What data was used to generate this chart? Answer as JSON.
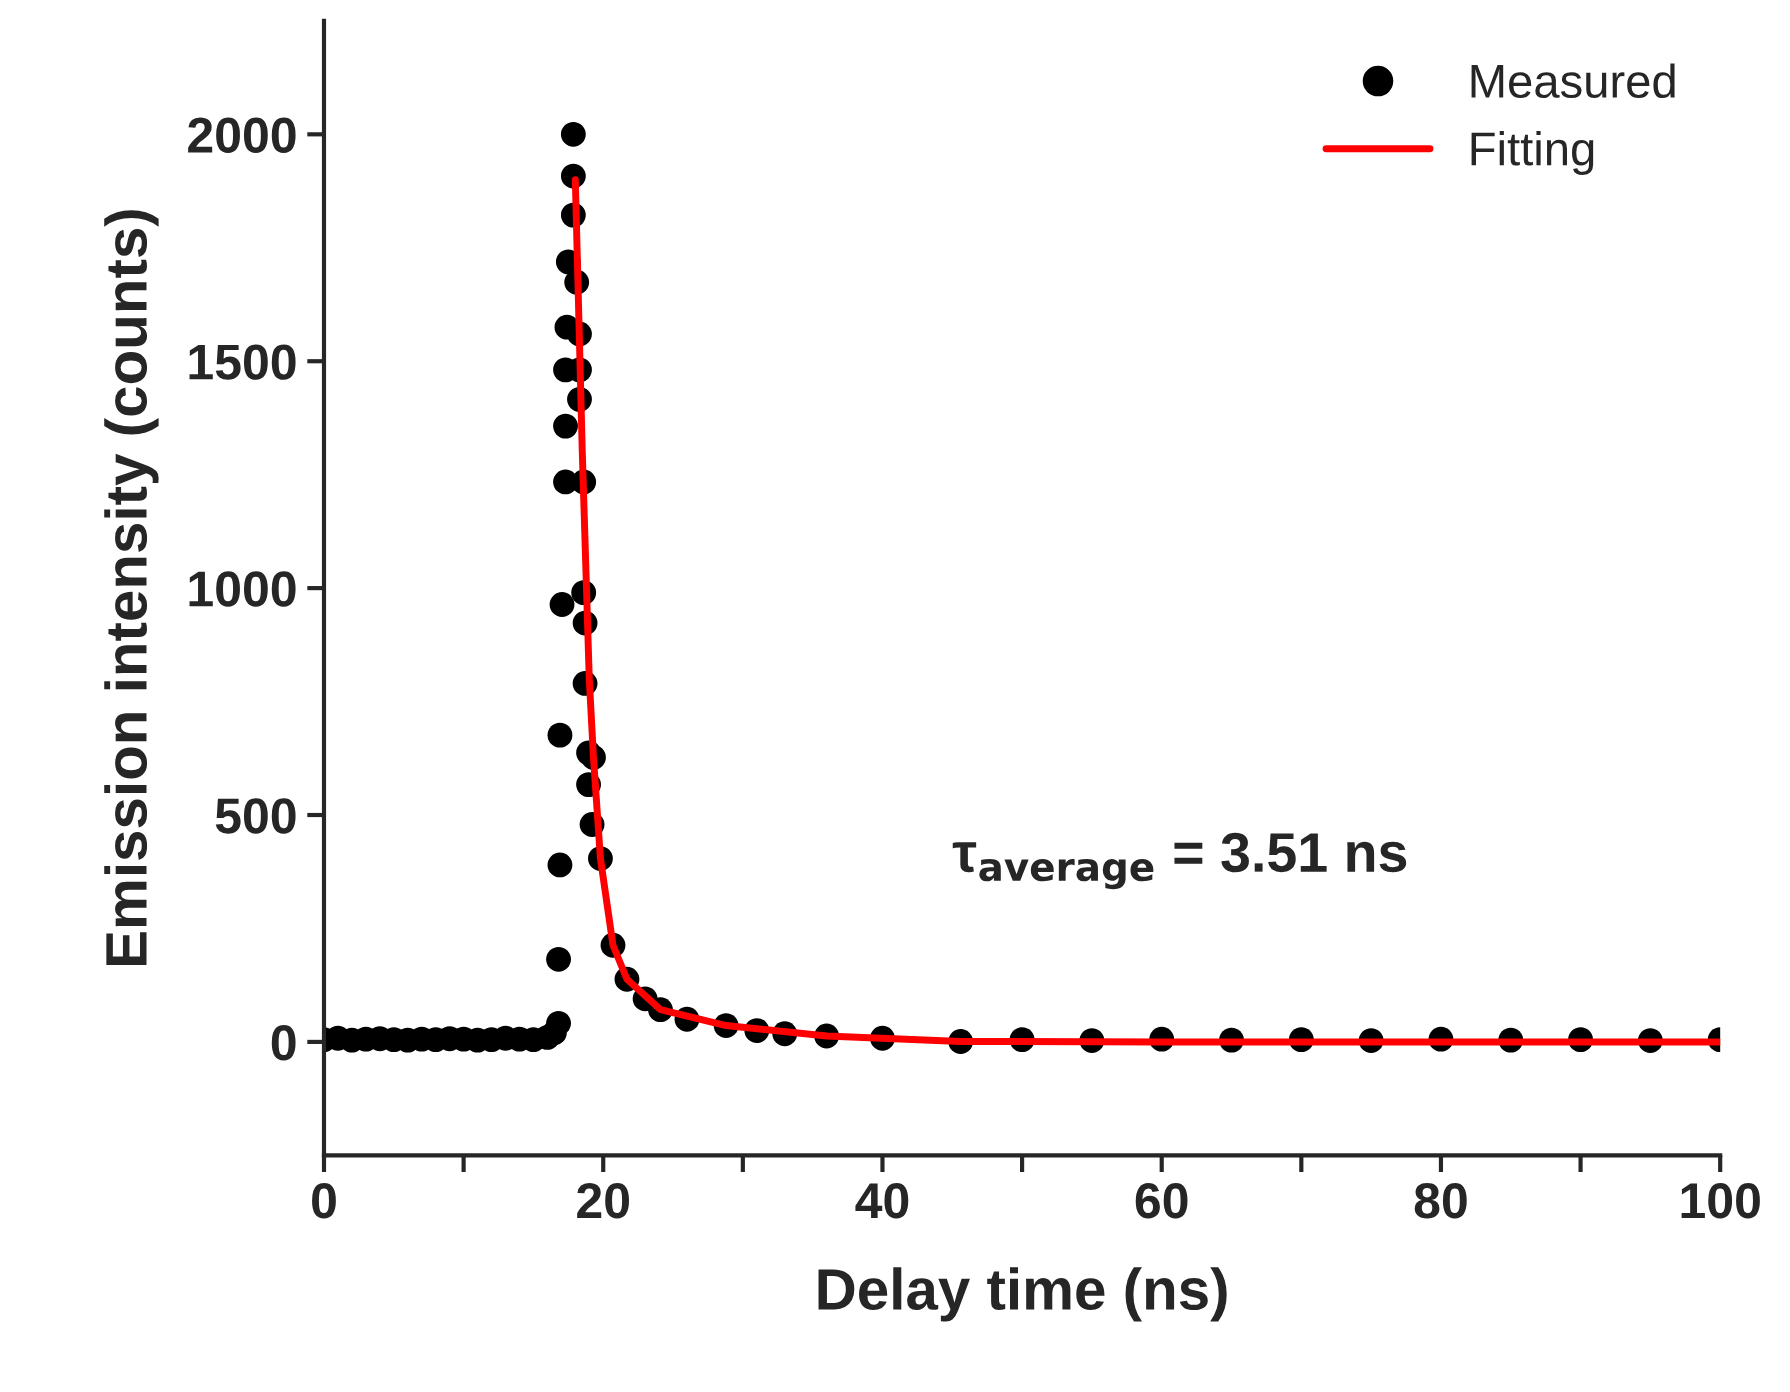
{
  "chart_data": {
    "type": "scatter",
    "xlabel": "Delay time (ns)",
    "ylabel": "Emission intensity (counts)",
    "xlim": [
      0,
      100
    ],
    "ylim": [
      -250,
      2250
    ],
    "xticks": [
      0,
      {
        "value": 10,
        "label": null
      },
      20,
      {
        "value": 30,
        "label": null
      },
      40,
      {
        "value": 50,
        "label": null
      },
      60,
      {
        "value": 70,
        "label": null
      },
      80,
      {
        "value": 90,
        "label": null
      },
      100
    ],
    "yticks": [
      0,
      500,
      1000,
      1500,
      2000
    ],
    "grid": false,
    "legend": "top right",
    "annotations": [
      "τ$_{average}$ = 3.51 ns"
    ],
    "series": [
      {
        "name": "Measured",
        "marker": "circle",
        "color": "#000000",
        "x": [
          0,
          1,
          2,
          3,
          4,
          5,
          6,
          7,
          8,
          9,
          10,
          11,
          12,
          13,
          14,
          15,
          16,
          16.5,
          16.8,
          16.8,
          16.9,
          16.9,
          17.05,
          17.3,
          17.3,
          17.3,
          17.4,
          17.5,
          17.86,
          17.86,
          17.86,
          18.1,
          18.3,
          18.3,
          18.3,
          18.6,
          18.6,
          18.7,
          18.7,
          18.95,
          18.95,
          19.2,
          19.3,
          19.8,
          20.7,
          21.7,
          23,
          24.1,
          26,
          28.8,
          31,
          33,
          36,
          40,
          45.6,
          50,
          55,
          60,
          65,
          70,
          75,
          80,
          85,
          90,
          95,
          100
        ],
        "values": [
          5,
          8,
          4,
          6,
          7,
          5,
          4,
          6,
          5,
          7,
          6,
          4,
          5,
          8,
          6,
          5,
          10,
          20,
          41,
          182,
          390,
          676,
          964,
          1234,
          1357,
          1481,
          1575,
          1719,
          2000,
          1908,
          1822,
          1674,
          1560,
          1481,
          1416,
          1234,
          990,
          923,
          790,
          637,
          567,
          479,
          627,
          404,
          213,
          138,
          95,
          71,
          50,
          36,
          25,
          18,
          13,
          8,
          1,
          5,
          3,
          6,
          4,
          5,
          3,
          6,
          4,
          5,
          3,
          5
        ]
      },
      {
        "name": "Fitting",
        "type": "line",
        "marker": "none",
        "line_style": "solid",
        "color": "#ff0000",
        "x": [
          18,
          18.5,
          19,
          19.3,
          19.8,
          20.7,
          21.7,
          24.1,
          28.8,
          36,
          45.6,
          60,
          80,
          100
        ],
        "values": [
          1900,
          1300,
          800,
          627,
          404,
          213,
          138,
          71,
          36,
          13,
          1,
          0,
          0,
          0
        ]
      }
    ]
  }
}
